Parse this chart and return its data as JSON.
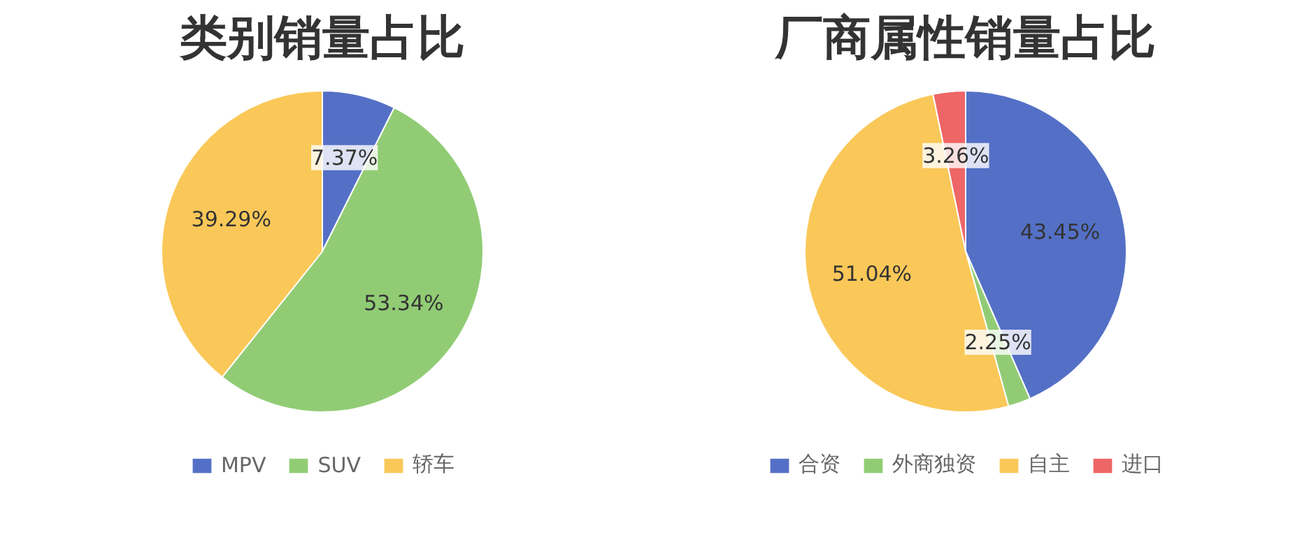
{
  "chart_data": [
    {
      "type": "pie",
      "title": "类别销量占比",
      "categories": [
        "MPV",
        "SUV",
        "轿车"
      ],
      "values": [
        7.37,
        53.34,
        39.29
      ],
      "colors": [
        "#5470c6",
        "#91cc75",
        "#fac858"
      ],
      "value_labels": [
        "7.37%",
        "53.34%",
        "39.29%"
      ],
      "legend": "bottom"
    },
    {
      "type": "pie",
      "title": "厂商属性销量占比",
      "categories": [
        "合资",
        "外商独资",
        "自主",
        "进口"
      ],
      "values": [
        43.45,
        2.25,
        51.04,
        3.26
      ],
      "colors": [
        "#5470c6",
        "#91cc75",
        "#fac858",
        "#ee6666"
      ],
      "value_labels": [
        "43.45%",
        "2.25%",
        "51.04%",
        "3.26%"
      ],
      "legend": "bottom"
    }
  ]
}
